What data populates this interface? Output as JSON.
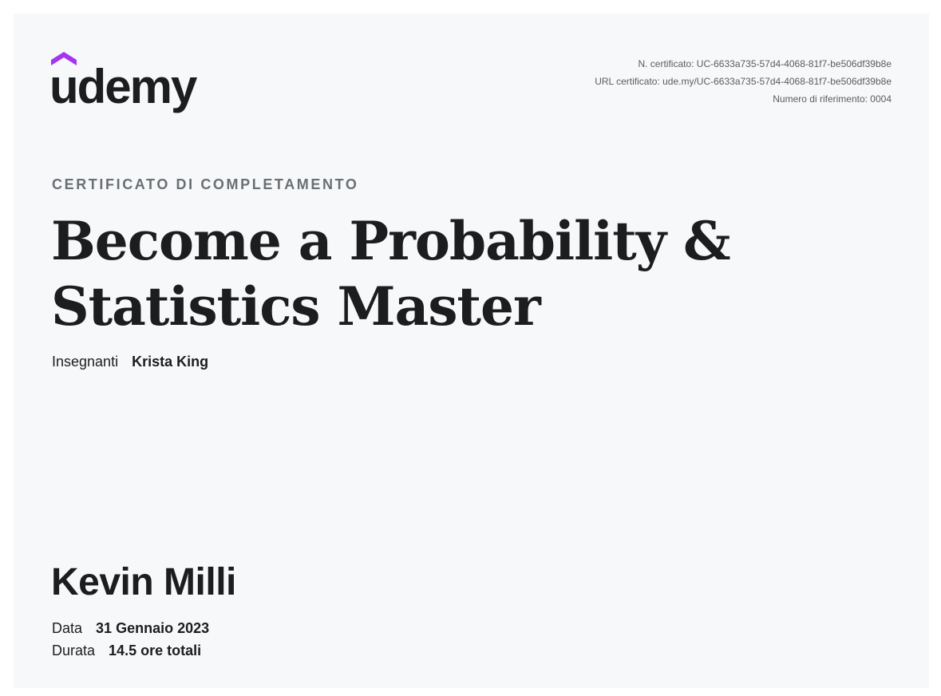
{
  "logo": {
    "text": "udemy",
    "accent_color": "#a435f0",
    "icon": "udemy-logo-icon"
  },
  "certificate_meta": {
    "number": "N. certificato: UC-6633a735-57d4-4068-81f7-be506df39b8e",
    "url": "URL certificato: ude.my/UC-6633a735-57d4-4068-81f7-be506df39b8e",
    "reference": "Numero di riferimento: 0004"
  },
  "certificate_label": "CERTIFICATO DI COMPLETAMENTO",
  "course": {
    "title_line1": "Become a Probability &",
    "title_line2": "Statistics Master"
  },
  "instructor": {
    "label": "Insegnanti",
    "name": "Krista King"
  },
  "student": {
    "name": "Kevin Milli"
  },
  "details": {
    "date_label": "Data",
    "date_value": "31 Gennaio 2023",
    "duration_label": "Durata",
    "duration_value": "14.5 ore totali"
  }
}
